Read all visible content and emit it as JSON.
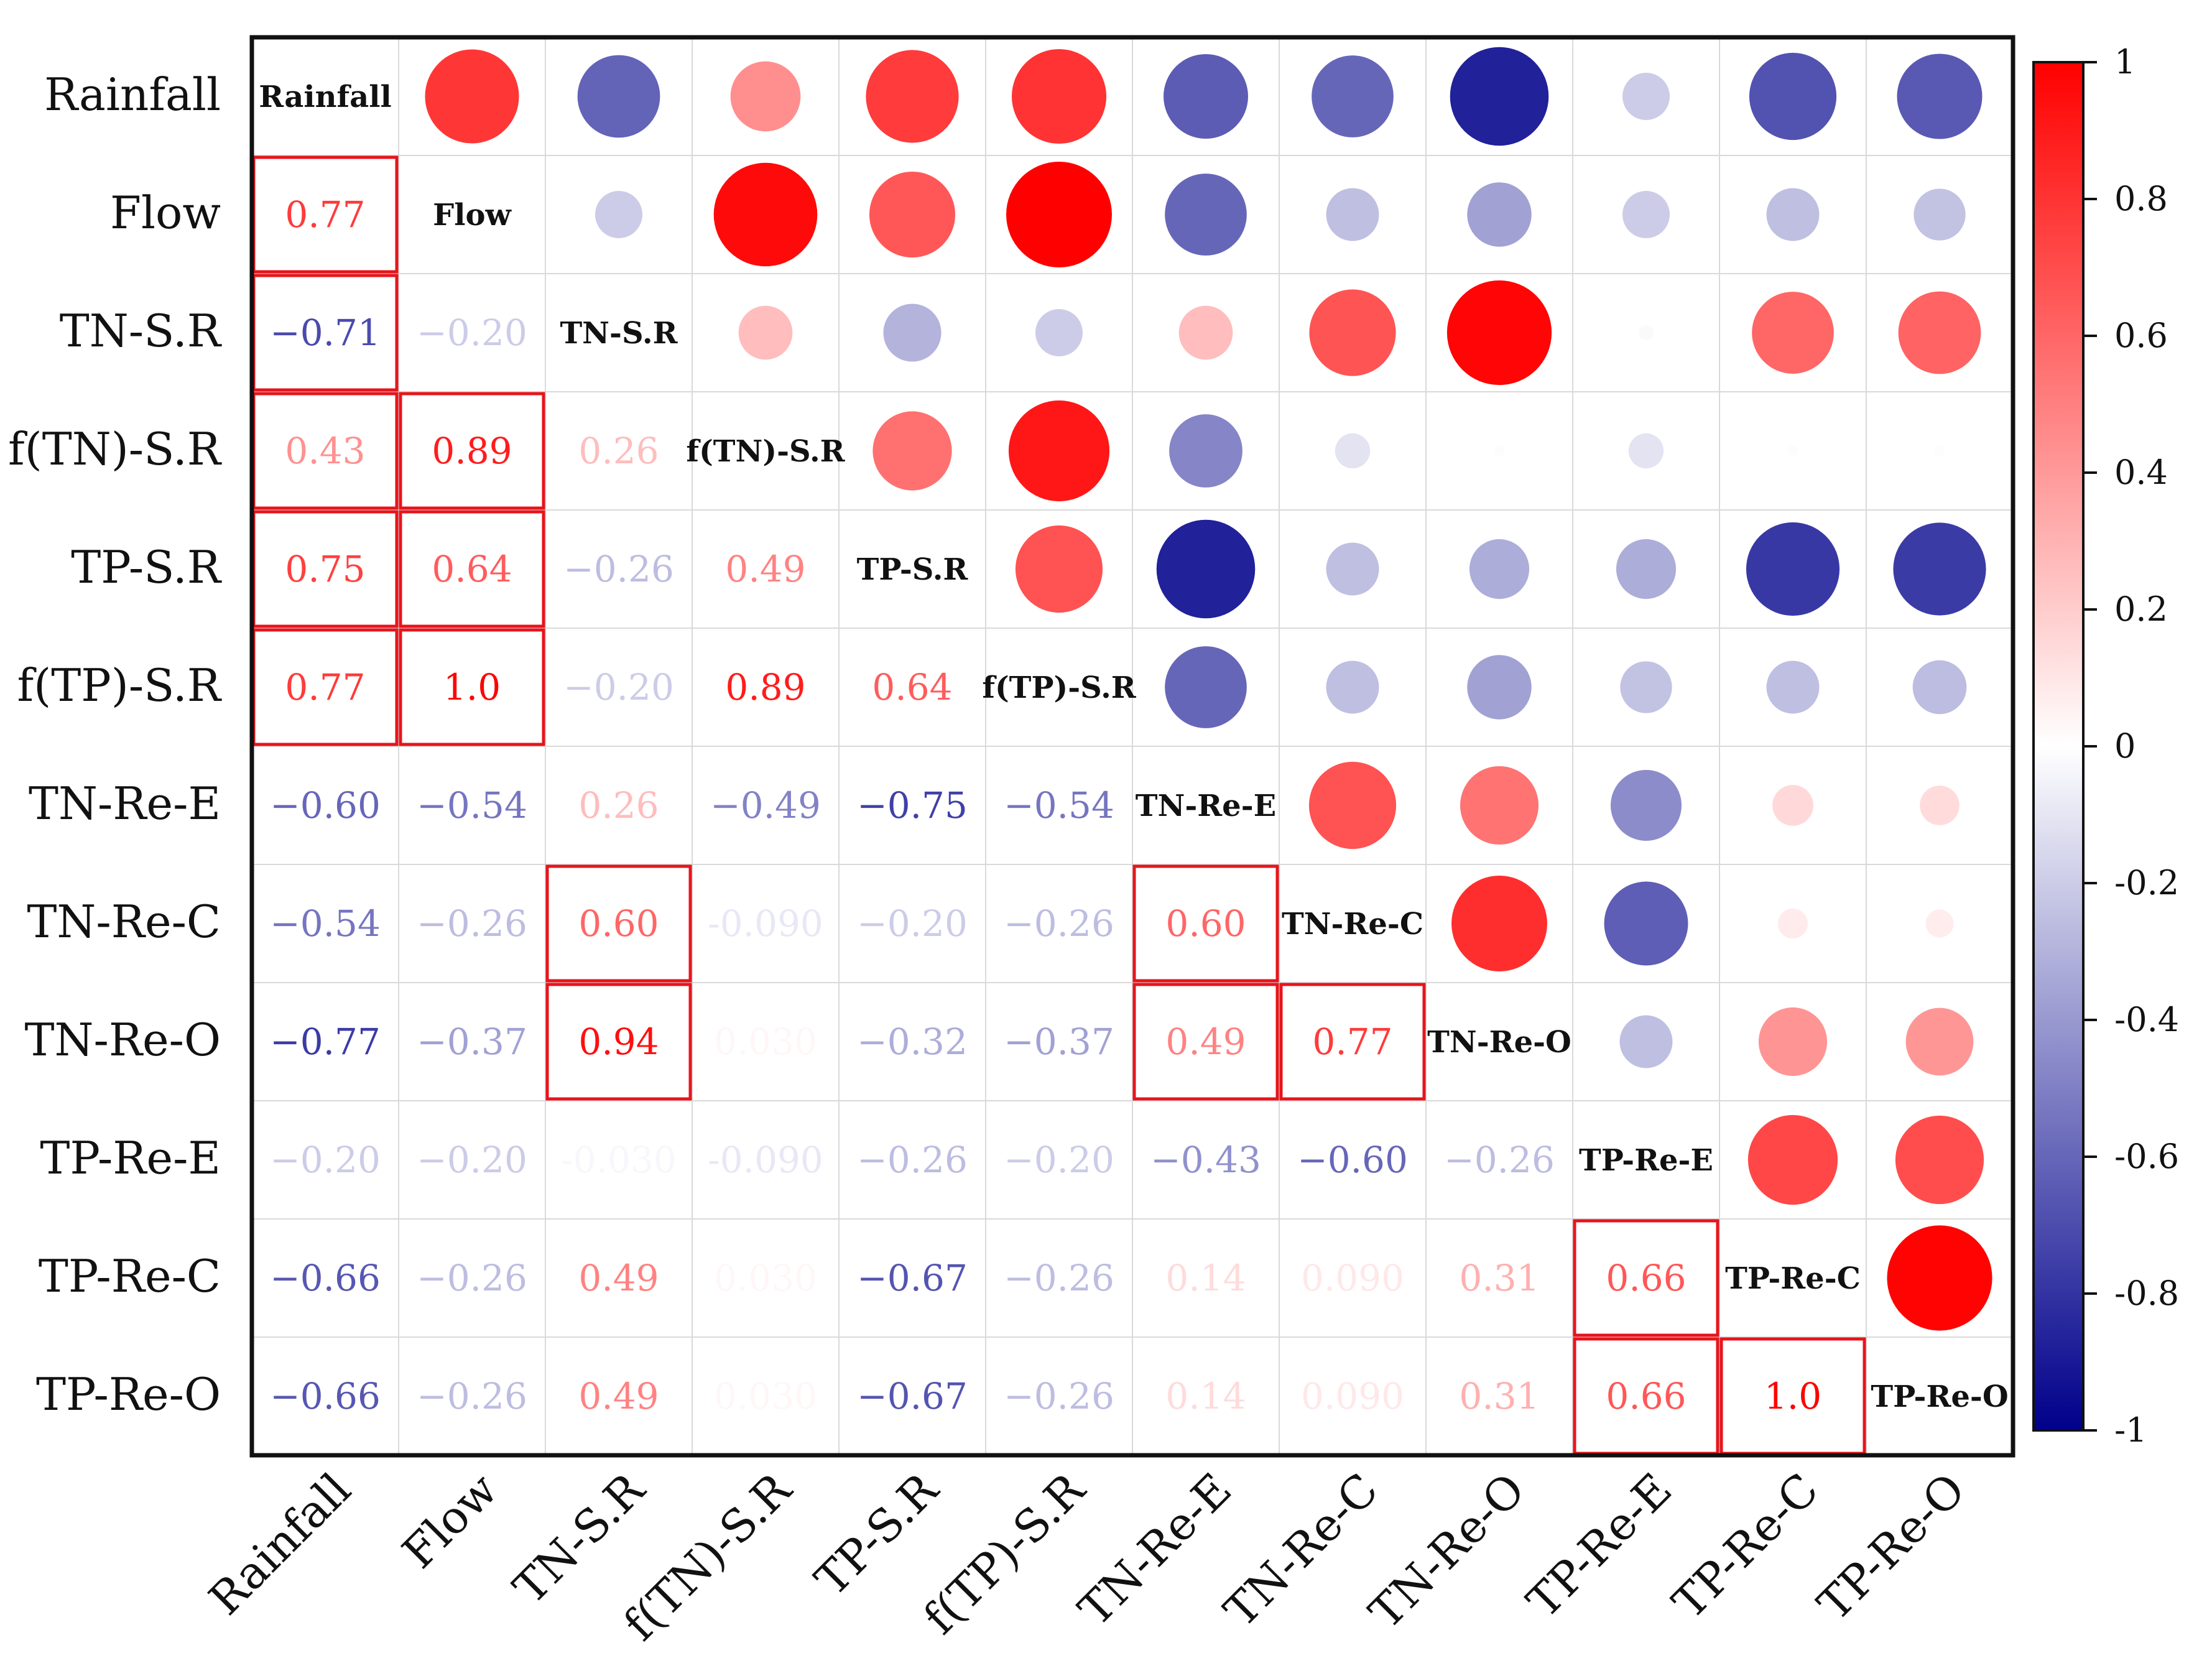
{
  "chart_data": {
    "type": "heatmap",
    "title": "",
    "variables": [
      "Rainfall",
      "Flow",
      "TN-S.R",
      "f(TN)-S.R",
      "TP-S.R",
      "f(TP)-S.R",
      "TN-Re-E",
      "TN-Re-C",
      "TN-Re-O",
      "TP-Re-E",
      "TP-Re-C",
      "TP-Re-O"
    ],
    "lower_labels": [
      [],
      [
        "0.77"
      ],
      [
        "−0.71",
        "−0.20"
      ],
      [
        "0.43",
        "0.89",
        "0.26"
      ],
      [
        "0.75",
        "0.64",
        "−0.26",
        "0.49"
      ],
      [
        "0.77",
        "1.0",
        "−0.20",
        "0.89",
        "0.64"
      ],
      [
        "−0.60",
        "−0.54",
        "0.26",
        "−0.49",
        "−0.75",
        "−0.54"
      ],
      [
        "−0.54",
        "−0.26",
        "0.60",
        "-0.090",
        "−0.20",
        "−0.26",
        "0.60"
      ],
      [
        "−0.77",
        "−0.37",
        "0.94",
        "0.030",
        "−0.32",
        "−0.37",
        "0.49",
        "0.77"
      ],
      [
        "−0.20",
        "−0.20",
        "-0.030",
        "-0.090",
        "−0.26",
        "−0.20",
        "−0.43",
        "−0.60",
        "−0.26"
      ],
      [
        "−0.66",
        "−0.26",
        "0.49",
        "0.030",
        "−0.67",
        "−0.26",
        "0.14",
        "0.090",
        "0.31",
        "0.66"
      ],
      [
        "−0.66",
        "−0.26",
        "0.49",
        "0.030",
        "−0.67",
        "−0.26",
        "0.14",
        "0.090",
        "0.31",
        "0.66",
        "1.0"
      ]
    ],
    "lower_values": [
      [],
      [
        0.77
      ],
      [
        -0.71,
        -0.2
      ],
      [
        0.43,
        0.89,
        0.26
      ],
      [
        0.75,
        0.64,
        -0.26,
        0.49
      ],
      [
        0.77,
        1.0,
        -0.2,
        0.89,
        0.64
      ],
      [
        -0.6,
        -0.54,
        0.26,
        -0.49,
        -0.75,
        -0.54
      ],
      [
        -0.54,
        -0.26,
        0.6,
        -0.09,
        -0.2,
        -0.26,
        0.6
      ],
      [
        -0.77,
        -0.37,
        0.94,
        0.03,
        -0.32,
        -0.37,
        0.49,
        0.77
      ],
      [
        -0.2,
        -0.2,
        -0.03,
        -0.09,
        -0.26,
        -0.2,
        -0.43,
        -0.6,
        -0.26
      ],
      [
        -0.66,
        -0.26,
        0.49,
        0.03,
        -0.67,
        -0.26,
        0.14,
        0.09,
        0.31,
        0.66
      ],
      [
        -0.66,
        -0.26,
        0.49,
        0.03,
        -0.67,
        -0.26,
        0.14,
        0.09,
        0.31,
        0.66,
        1.0
      ]
    ],
    "upper_values": [
      [
        0.79,
        -0.61,
        0.44,
        0.77,
        0.8,
        -0.64,
        -0.6,
        -0.87,
        -0.2,
        -0.68,
        -0.65
      ],
      [
        -0.2,
        0.96,
        0.66,
        1.0,
        -0.6,
        -0.25,
        -0.37,
        -0.2,
        -0.25,
        -0.24
      ],
      [
        0.26,
        -0.3,
        -0.2,
        0.26,
        0.67,
        0.98,
        -0.02,
        0.6,
        0.61
      ],
      [
        0.56,
        0.91,
        -0.48,
        -0.11,
        -0.01,
        -0.11,
        -0.01,
        -0.01
      ],
      [
        0.68,
        -0.87,
        -0.25,
        -0.32,
        -0.32,
        -0.78,
        -0.77
      ],
      [
        -0.6,
        -0.25,
        -0.37,
        -0.24,
        -0.25,
        -0.26
      ],
      [
        0.68,
        0.55,
        -0.45,
        0.15,
        0.14
      ],
      [
        0.82,
        -0.63,
        0.08,
        0.07
      ],
      [
        -0.25,
        0.42,
        0.41
      ],
      [
        0.72,
        0.7
      ],
      [
        0.99
      ]
    ],
    "highlighted_cells": [
      [
        1,
        0
      ],
      [
        2,
        0
      ],
      [
        3,
        0
      ],
      [
        3,
        1
      ],
      [
        4,
        0
      ],
      [
        4,
        1
      ],
      [
        5,
        0
      ],
      [
        5,
        1
      ],
      [
        7,
        2
      ],
      [
        8,
        2
      ],
      [
        7,
        6
      ],
      [
        8,
        6
      ],
      [
        8,
        7
      ],
      [
        10,
        9
      ],
      [
        11,
        9
      ],
      [
        11,
        10
      ]
    ],
    "colorbar": {
      "range": [
        -1,
        1
      ],
      "ticks": [
        "1",
        "0.8",
        "0.6",
        "0.4",
        "0.2",
        "0",
        "-0.2",
        "-0.4",
        "-0.6",
        "-0.8",
        "-1"
      ],
      "colors": {
        "negative": "#00008B",
        "zero": "#ffffff",
        "positive": "#ff0000"
      }
    },
    "highlight_color": "#e8141b"
  }
}
